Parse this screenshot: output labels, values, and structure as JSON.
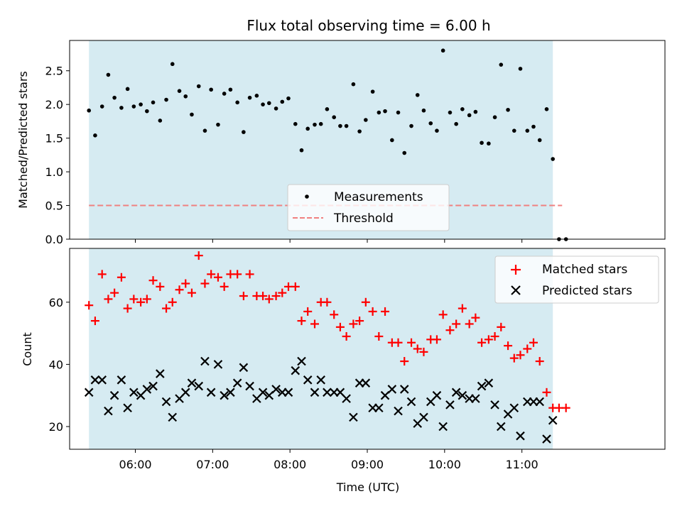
{
  "chart_data": [
    {
      "type": "scatter",
      "title": "Flux total observing time = 6.00 h",
      "xlabel": "",
      "ylabel": "Matched/Predicted stars",
      "xlim": [
        5.15,
        12.85
      ],
      "ylim": [
        0.0,
        2.95
      ],
      "yticks": [
        0.0,
        0.5,
        1.0,
        1.5,
        2.0,
        2.5
      ],
      "ytick_labels": [
        "0.0",
        "0.5",
        "1.0",
        "1.5",
        "2.0",
        "2.5"
      ],
      "shaded_span": [
        5.4,
        11.4
      ],
      "threshold": 0.5,
      "threshold_range": [
        5.4,
        11.52
      ],
      "legend": {
        "position": "lower-center",
        "entries": [
          "Measurements",
          "Threshold"
        ]
      },
      "colors": {
        "shade": "#add8e6",
        "points": "#000000",
        "threshold": "#f08080"
      },
      "series": [
        {
          "name": "Measurements",
          "x": [
            5.4,
            5.48,
            5.57,
            5.65,
            5.73,
            5.82,
            5.9,
            5.98,
            6.07,
            6.15,
            6.23,
            6.32,
            6.4,
            6.48,
            6.57,
            6.65,
            6.73,
            6.82,
            6.9,
            6.98,
            7.07,
            7.15,
            7.23,
            7.32,
            7.4,
            7.48,
            7.57,
            7.65,
            7.73,
            7.82,
            7.9,
            7.98,
            8.07,
            8.15,
            8.23,
            8.32,
            8.4,
            8.48,
            8.57,
            8.65,
            8.73,
            8.82,
            8.9,
            8.98,
            9.07,
            9.15,
            9.23,
            9.32,
            9.4,
            9.48,
            9.57,
            9.65,
            9.73,
            9.82,
            9.9,
            9.98,
            10.07,
            10.15,
            10.23,
            10.32,
            10.4,
            10.48,
            10.57,
            10.65,
            10.73,
            10.82,
            10.9,
            10.98,
            11.07,
            11.15,
            11.23,
            11.32,
            11.4,
            11.48,
            11.57
          ],
          "y": [
            1.91,
            1.54,
            1.97,
            2.44,
            2.1,
            1.95,
            2.23,
            1.97,
            2.0,
            1.9,
            2.03,
            1.76,
            2.07,
            2.6,
            2.2,
            2.12,
            1.85,
            2.27,
            1.61,
            2.22,
            1.7,
            2.16,
            2.22,
            2.03,
            1.59,
            2.1,
            2.13,
            2.0,
            2.02,
            1.94,
            2.04,
            2.09,
            1.71,
            1.32,
            1.64,
            1.7,
            1.71,
            1.93,
            1.81,
            1.68,
            1.68,
            2.3,
            1.6,
            1.77,
            2.19,
            1.88,
            1.9,
            1.47,
            1.88,
            1.28,
            1.68,
            2.14,
            1.91,
            1.72,
            1.61,
            2.8,
            1.88,
            1.71,
            1.93,
            1.84,
            1.89,
            1.43,
            1.42,
            1.81,
            2.59,
            1.92,
            1.61,
            2.53,
            1.61,
            1.67,
            1.47,
            1.93,
            1.19,
            0.0,
            0.0
          ]
        },
        {
          "name": "Threshold",
          "x": [
            5.4,
            11.52
          ],
          "y": [
            0.5,
            0.5
          ]
        }
      ]
    },
    {
      "type": "scatter",
      "title": "",
      "xlabel": "Time (UTC)",
      "ylabel": "Count",
      "xlim": [
        5.15,
        12.85
      ],
      "ylim": [
        12.7,
        77.3
      ],
      "yticks": [
        20,
        40,
        60
      ],
      "ytick_labels": [
        "20",
        "40",
        "60"
      ],
      "xticks": [
        6,
        7,
        8,
        9,
        10,
        11
      ],
      "xtick_labels": [
        "06:00",
        "07:00",
        "08:00",
        "09:00",
        "10:00",
        "11:00"
      ],
      "shaded_span": [
        5.4,
        11.4
      ],
      "legend": {
        "position": "top-right",
        "entries": [
          "Matched stars",
          "Predicted stars"
        ]
      },
      "colors": {
        "shade": "#add8e6",
        "matched": "#ff0000",
        "predicted": "#000000"
      },
      "series": [
        {
          "name": "Matched stars",
          "x": [
            5.4,
            5.48,
            5.57,
            5.65,
            5.73,
            5.82,
            5.9,
            5.98,
            6.07,
            6.15,
            6.23,
            6.32,
            6.4,
            6.48,
            6.57,
            6.65,
            6.73,
            6.82,
            6.9,
            6.98,
            7.07,
            7.15,
            7.23,
            7.32,
            7.4,
            7.48,
            7.57,
            7.65,
            7.73,
            7.82,
            7.9,
            7.98,
            8.07,
            8.15,
            8.23,
            8.32,
            8.4,
            8.48,
            8.57,
            8.65,
            8.73,
            8.82,
            8.9,
            8.98,
            9.07,
            9.15,
            9.23,
            9.32,
            9.4,
            9.48,
            9.57,
            9.65,
            9.73,
            9.82,
            9.9,
            9.98,
            10.07,
            10.15,
            10.23,
            10.32,
            10.4,
            10.48,
            10.57,
            10.65,
            10.73,
            10.82,
            10.9,
            10.98,
            11.07,
            11.15,
            11.23,
            11.32,
            11.4,
            11.48,
            11.57
          ],
          "y": [
            59,
            54,
            69,
            61,
            63,
            68,
            58,
            61,
            60,
            61,
            67,
            65,
            58,
            60,
            64,
            66,
            63,
            75,
            66,
            69,
            68,
            65,
            69,
            69,
            62,
            69,
            62,
            62,
            61,
            62,
            63,
            65,
            65,
            54,
            57,
            53,
            60,
            60,
            56,
            52,
            49,
            53,
            54,
            60,
            57,
            49,
            57,
            47,
            47,
            41,
            47,
            45,
            44,
            48,
            48,
            56,
            51,
            53,
            58,
            53,
            55,
            47,
            48,
            49,
            52,
            46,
            42,
            43,
            45,
            47,
            41,
            31,
            26,
            26,
            26
          ]
        },
        {
          "name": "Predicted stars",
          "x": [
            5.4,
            5.48,
            5.57,
            5.65,
            5.73,
            5.82,
            5.9,
            5.98,
            6.07,
            6.15,
            6.23,
            6.32,
            6.4,
            6.48,
            6.57,
            6.65,
            6.73,
            6.82,
            6.9,
            6.98,
            7.07,
            7.15,
            7.23,
            7.32,
            7.4,
            7.48,
            7.57,
            7.65,
            7.73,
            7.82,
            7.9,
            7.98,
            8.07,
            8.15,
            8.23,
            8.32,
            8.4,
            8.48,
            8.57,
            8.65,
            8.73,
            8.82,
            8.9,
            8.98,
            9.07,
            9.15,
            9.23,
            9.32,
            9.4,
            9.48,
            9.57,
            9.65,
            9.73,
            9.82,
            9.9,
            9.98,
            10.07,
            10.15,
            10.23,
            10.32,
            10.4,
            10.48,
            10.57,
            10.65,
            10.73,
            10.82,
            10.9,
            10.98,
            11.07,
            11.15,
            11.23,
            11.32,
            11.4
          ],
          "y": [
            31,
            35,
            35,
            25,
            30,
            35,
            26,
            31,
            30,
            32,
            33,
            37,
            28,
            23,
            29,
            31,
            34,
            33,
            41,
            31,
            40,
            30,
            31,
            34,
            39,
            33,
            29,
            31,
            30,
            32,
            31,
            31,
            38,
            41,
            35,
            31,
            35,
            31,
            31,
            31,
            29,
            23,
            34,
            34,
            26,
            26,
            30,
            32,
            25,
            32,
            28,
            21,
            23,
            28,
            30,
            20,
            27,
            31,
            30,
            29,
            29,
            33,
            34,
            27,
            20,
            24,
            26,
            17,
            28,
            28,
            28,
            16,
            22
          ]
        }
      ]
    }
  ]
}
